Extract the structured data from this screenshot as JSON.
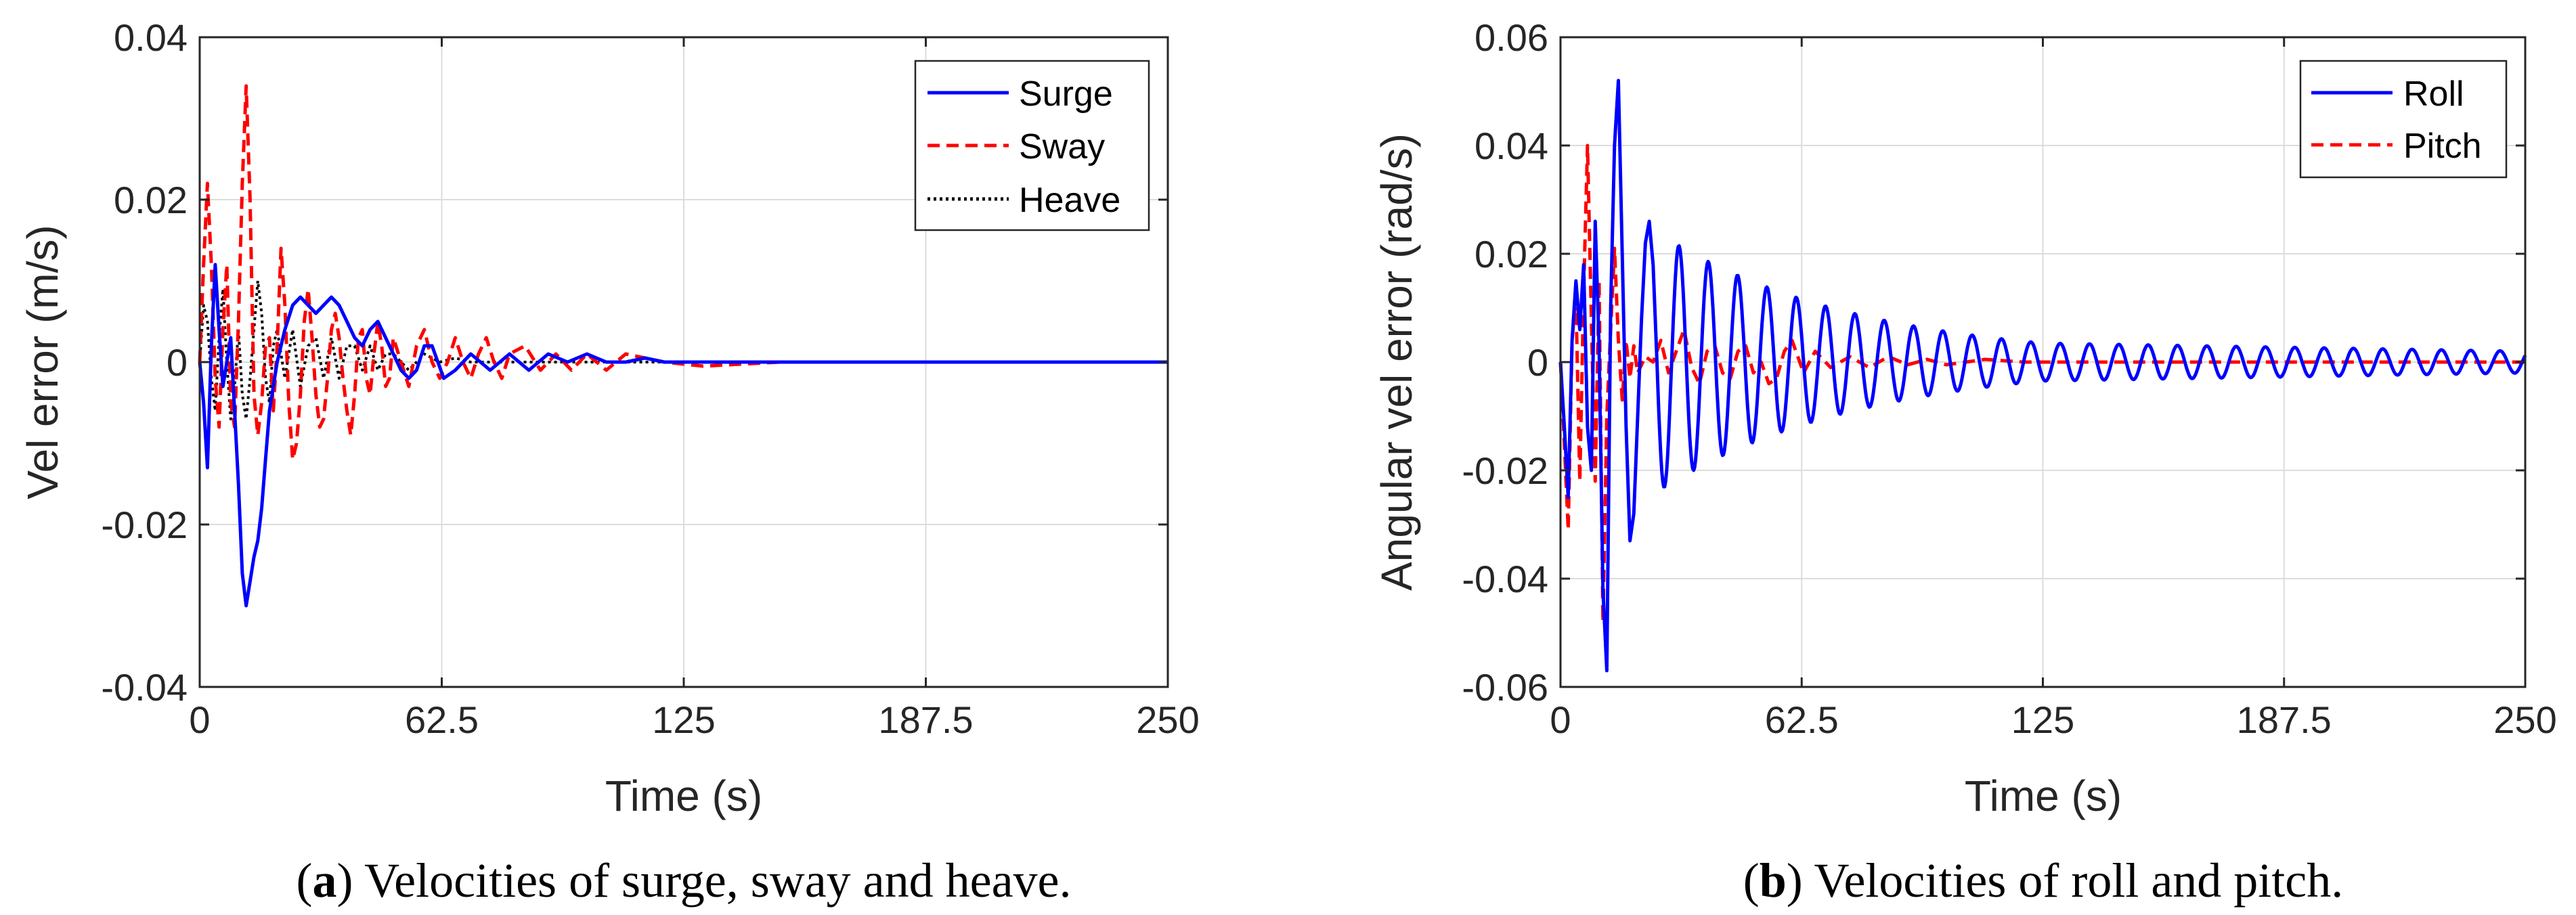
{
  "chart_data": [
    {
      "type": "line",
      "id": "a",
      "caption": {
        "letter": "a",
        "text": "Velocities of surge, sway and heave."
      },
      "xlabel": "Time (s)",
      "ylabel": "Vel error (m/s)",
      "xlim": [
        0,
        250
      ],
      "ylim": [
        -0.04,
        0.04
      ],
      "xticks": [
        0,
        62.5,
        125,
        187.5,
        250
      ],
      "xtick_labels": [
        "0",
        "62.5",
        "125",
        "187.5",
        "250"
      ],
      "yticks": [
        -0.04,
        -0.02,
        0,
        0.02,
        0.04
      ],
      "ytick_labels": [
        "-0.04",
        "-0.02",
        "0",
        "0.02",
        "0.04"
      ],
      "grid": true,
      "legend_position": "top-right",
      "series": [
        {
          "name": "Surge",
          "color": "#0000ff",
          "style": "solid",
          "x": [
            0,
            1,
            2,
            3,
            4,
            5,
            6,
            7,
            8,
            9,
            10,
            11,
            12,
            13,
            14,
            15,
            16,
            17,
            18,
            20,
            22,
            24,
            26,
            28,
            30,
            32,
            34,
            36,
            38,
            40,
            42,
            44,
            46,
            48,
            50,
            52,
            54,
            56,
            58,
            60,
            63,
            66,
            70,
            75,
            80,
            85,
            90,
            95,
            100,
            105,
            110,
            115,
            120,
            130,
            140,
            150,
            170,
            200,
            250
          ],
          "values": [
            0,
            -0.005,
            -0.013,
            0.002,
            0.012,
            0.004,
            -0.003,
            0.0,
            0.003,
            -0.006,
            -0.015,
            -0.026,
            -0.03,
            -0.027,
            -0.024,
            -0.022,
            -0.018,
            -0.012,
            -0.006,
            0.0,
            0.004,
            0.007,
            0.008,
            0.007,
            0.006,
            0.007,
            0.008,
            0.007,
            0.005,
            0.003,
            0.002,
            0.004,
            0.005,
            0.003,
            0.001,
            -0.001,
            -0.002,
            -0.001,
            0.002,
            0.002,
            -0.002,
            -0.001,
            0.001,
            -0.001,
            0.001,
            -0.001,
            0.001,
            0.0,
            0.001,
            0.0,
            0.0,
            0.0005,
            0.0,
            0.0,
            0.0,
            0.0,
            0.0,
            0.0,
            0.0
          ]
        },
        {
          "name": "Sway",
          "color": "#ff0000",
          "style": "dashed",
          "x": [
            0,
            1,
            2,
            3,
            4,
            5,
            6,
            7,
            8,
            9,
            10,
            11,
            12,
            13,
            14,
            15,
            16,
            17,
            18,
            19,
            20,
            21,
            22,
            23,
            24,
            25,
            26,
            27,
            28,
            29,
            30,
            31,
            32,
            33,
            34,
            35,
            36,
            37,
            38,
            39,
            40,
            41,
            42,
            43,
            44,
            45,
            46,
            47,
            48,
            49,
            50,
            52,
            54,
            56,
            58,
            60,
            62,
            64,
            66,
            68,
            70,
            72,
            74,
            76,
            78,
            80,
            84,
            88,
            92,
            96,
            100,
            105,
            110,
            120,
            130,
            150,
            200,
            250
          ],
          "values": [
            0,
            0.012,
            0.022,
            0.012,
            -0.002,
            -0.008,
            0.004,
            0.012,
            -0.005,
            -0.008,
            0.005,
            0.022,
            0.034,
            0.02,
            -0.004,
            -0.009,
            -0.005,
            0.002,
            0.003,
            -0.006,
            0.002,
            0.014,
            0.007,
            -0.005,
            -0.012,
            -0.01,
            -0.004,
            0.005,
            0.009,
            0.003,
            -0.004,
            -0.008,
            -0.007,
            -0.002,
            0.004,
            0.006,
            0.003,
            -0.002,
            -0.006,
            -0.009,
            -0.004,
            0.003,
            0.004,
            -0.002,
            -0.004,
            0.001,
            0.005,
            0.002,
            -0.003,
            -0.002,
            0.003,
            0.0,
            -0.003,
            0.002,
            0.004,
            0.0,
            -0.002,
            0.0,
            0.003,
            0.0,
            -0.002,
            0.001,
            0.003,
            0.0,
            -0.002,
            0.001,
            0.002,
            -0.001,
            0.001,
            -0.001,
            0.001,
            -0.001,
            0.001,
            0.0,
            -0.0005,
            0.0,
            0.0,
            0.0
          ]
        },
        {
          "name": "Heave",
          "color": "#000000",
          "style": "dotted",
          "x": [
            0,
            1,
            2,
            3,
            4,
            5,
            6,
            7,
            8,
            9,
            10,
            11,
            12,
            13,
            14,
            15,
            16,
            17,
            18,
            19,
            20,
            22,
            24,
            26,
            28,
            30,
            32,
            34,
            36,
            38,
            40,
            42,
            44,
            46,
            48,
            50,
            54,
            58,
            62,
            66,
            70,
            75,
            80,
            90,
            100,
            120,
            150,
            200,
            250
          ],
          "values": [
            0,
            0.007,
            0.005,
            -0.002,
            -0.006,
            0.003,
            0.009,
            0.0,
            -0.007,
            -0.003,
            0.004,
            -0.004,
            -0.007,
            -0.002,
            0.004,
            0.01,
            0.006,
            -0.002,
            -0.005,
            0.002,
            0.004,
            -0.002,
            0.004,
            -0.003,
            0.002,
            0.003,
            -0.002,
            0.003,
            -0.002,
            0.002,
            0.002,
            -0.001,
            0.002,
            -0.001,
            0.001,
            0.001,
            -0.001,
            0.001,
            0.0,
            0.0005,
            0.0,
            0.0,
            0.0,
            0.0,
            0.0,
            0.0,
            0.0,
            0.0,
            0.0
          ]
        }
      ]
    },
    {
      "type": "line",
      "id": "b",
      "caption": {
        "letter": "b",
        "text": "Velocities of roll and pitch."
      },
      "xlabel": "Time (s)",
      "ylabel": "Angular vel error (rad/s)",
      "xlim": [
        0,
        250
      ],
      "ylim": [
        -0.06,
        0.06
      ],
      "xticks": [
        0,
        62.5,
        125,
        187.5,
        250
      ],
      "xtick_labels": [
        "0",
        "62.5",
        "125",
        "187.5",
        "250"
      ],
      "yticks": [
        -0.06,
        -0.04,
        -0.02,
        0,
        0.02,
        0.04,
        0.06
      ],
      "ytick_labels": [
        "-0.06",
        "-0.04",
        "-0.02",
        "0",
        "0.02",
        "0.04",
        "0.06"
      ],
      "grid": true,
      "legend_position": "top-right",
      "series": [
        {
          "name": "Roll",
          "color": "#0000ff",
          "style": "solid",
          "x": [
            0,
            1,
            2,
            3,
            4,
            5,
            6,
            7,
            8,
            9,
            10,
            11,
            12,
            13,
            14,
            15,
            16,
            17,
            18,
            19,
            20,
            21,
            22,
            23,
            24,
            25
          ],
          "values": [
            0,
            -0.012,
            -0.025,
            0.004,
            0.015,
            0.006,
            0.018,
            -0.012,
            -0.02,
            0.026,
            0.003,
            -0.042,
            -0.057,
            0.01,
            0.04,
            0.052,
            0.02,
            -0.012,
            -0.033,
            -0.028,
            -0.01,
            0.008,
            0.022,
            0.026,
            0.018,
            0.0
          ],
          "decay": {
            "start": 25,
            "period": 7.6,
            "amp_start": 0.024,
            "amp_mid": 0.0035,
            "t_mid": 125,
            "amp_end": 0.002
          }
        },
        {
          "name": "Pitch",
          "color": "#ff0000",
          "style": "dashed",
          "x": [
            0,
            1,
            2,
            3,
            4,
            5,
            6,
            7,
            8,
            9,
            10,
            11,
            12,
            13,
            14,
            15,
            16,
            17,
            18,
            19,
            20,
            22,
            24,
            26,
            28,
            30,
            32,
            34,
            36,
            38,
            40,
            42,
            44,
            46,
            48,
            50,
            52,
            54,
            56,
            58,
            60,
            63,
            66,
            70,
            75,
            80,
            85,
            90,
            95,
            100,
            110,
            120,
            130,
            150,
            200,
            250
          ],
          "values": [
            0,
            -0.015,
            -0.031,
            0.004,
            0.012,
            -0.022,
            0.013,
            0.04,
            0.008,
            -0.022,
            0.015,
            -0.048,
            -0.01,
            0.006,
            0.021,
            0.004,
            -0.007,
            0.004,
            -0.003,
            0.003,
            -0.002,
            0.001,
            0.0,
            0.004,
            -0.002,
            0.002,
            0.006,
            -0.001,
            -0.004,
            0.002,
            0.003,
            -0.002,
            -0.003,
            0.002,
            0.003,
            -0.002,
            0.0,
            -0.004,
            -0.003,
            0.002,
            0.004,
            -0.002,
            0.002,
            -0.001,
            0.001,
            -0.001,
            0.001,
            -0.0005,
            0.0005,
            -0.0005,
            0.0005,
            0.0,
            0.0,
            0.0,
            0.0,
            0.0
          ]
        }
      ]
    }
  ]
}
